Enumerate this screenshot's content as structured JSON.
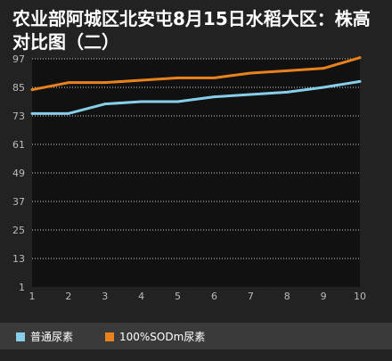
{
  "chart_data": {
    "type": "line",
    "title": "农业部阿城区北安屯8月15日水稻大区：株高对比图（二）",
    "x": [
      1,
      2,
      3,
      4,
      5,
      6,
      7,
      8,
      9,
      10
    ],
    "y_ticks": [
      1,
      13,
      25,
      37,
      49,
      61,
      73,
      85,
      97
    ],
    "ylim": [
      1,
      97
    ],
    "xlim": [
      1,
      10
    ],
    "grid": true,
    "legend_position": "bottom",
    "series": [
      {
        "name": "普通尿素",
        "color": "#87ceeb",
        "values": [
          74,
          74,
          78,
          79,
          79,
          81,
          82,
          83,
          85,
          87.5
        ]
      },
      {
        "name": "100%SODm尿素",
        "color": "#e8821e",
        "values": [
          84,
          87,
          87,
          88,
          89,
          89,
          91,
          92,
          93,
          97.5
        ]
      }
    ]
  },
  "colors": {
    "background": "#222222",
    "plot_background": "#111111",
    "grid": "#cfcfcf",
    "tick_text": "#bbbbbb",
    "legend_background": "#3a3a3a"
  }
}
